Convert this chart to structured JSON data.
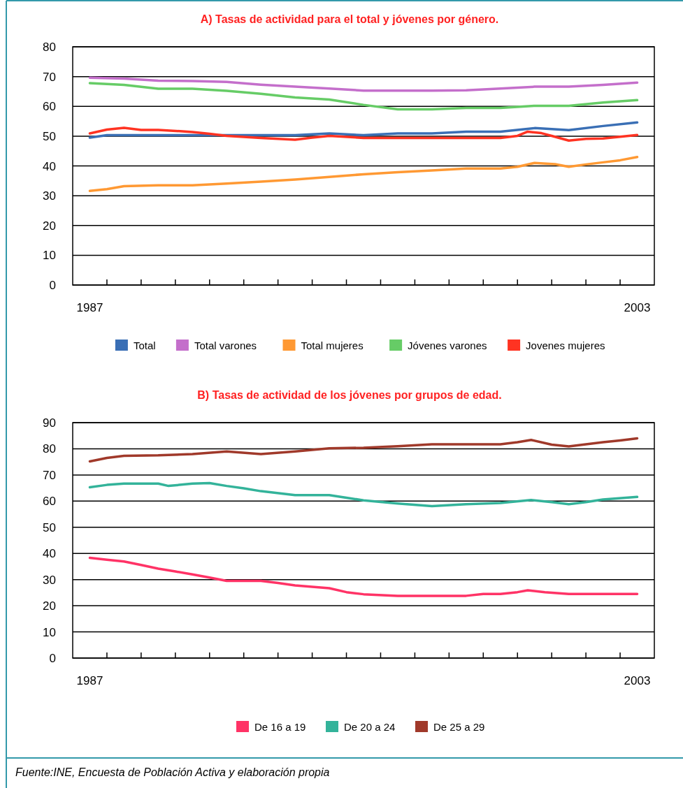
{
  "chart_data": [
    {
      "type": "line",
      "title": "A) Tasas de actividad para el total y jóvenes por género.",
      "xlim": [
        1986.5,
        2003.5
      ],
      "xticks": [
        {
          "value": 1987,
          "label": "1987"
        },
        {
          "value": 1987.5,
          "label": null
        },
        {
          "value": 1988.5,
          "label": null
        },
        {
          "value": 1989.5,
          "label": null
        },
        {
          "value": 1990.5,
          "label": null
        },
        {
          "value": 1991.5,
          "label": null
        },
        {
          "value": 1992.5,
          "label": null
        },
        {
          "value": 1993.5,
          "label": null
        },
        {
          "value": 1994.5,
          "label": null
        },
        {
          "value": 1995.5,
          "label": null
        },
        {
          "value": 1996.5,
          "label": null
        },
        {
          "value": 1997.5,
          "label": null
        },
        {
          "value": 1998.5,
          "label": null
        },
        {
          "value": 1999.5,
          "label": null
        },
        {
          "value": 2000.5,
          "label": null
        },
        {
          "value": 2001.5,
          "label": null
        },
        {
          "value": 2002.5,
          "label": null
        },
        {
          "value": 2003,
          "label": "2003"
        }
      ],
      "ylim": [
        0,
        80
      ],
      "yticks": [
        0,
        10,
        20,
        30,
        40,
        50,
        60,
        70,
        80
      ],
      "grid": "y",
      "legend": "bottom",
      "series": [
        {
          "name": "Total",
          "color": "#3a6fb5",
          "x": [
            1987,
            1987.5,
            1988,
            1989,
            1990,
            1991,
            1992,
            1993,
            1994,
            1995,
            1996,
            1997,
            1998,
            1999,
            2000,
            2001,
            2002,
            2003
          ],
          "values": [
            49.5,
            50.3,
            50.3,
            50.3,
            50.3,
            50.3,
            50.3,
            50.3,
            50.9,
            50.3,
            50.9,
            50.9,
            51.5,
            51.5,
            52.7,
            52,
            53.4,
            54.6
          ]
        },
        {
          "name": "Total varones",
          "color": "#c46fcb",
          "x": [
            1987,
            1988,
            1989,
            1990,
            1991,
            1992,
            1993,
            1994,
            1995,
            1996,
            1997,
            1998,
            1999,
            2000,
            2001,
            2002,
            2003
          ],
          "values": [
            69.6,
            69.3,
            68.6,
            68.5,
            68.2,
            67.3,
            66.6,
            66,
            65.3,
            65.3,
            65.3,
            65.4,
            66,
            66.6,
            66.6,
            67.2,
            68
          ]
        },
        {
          "name": "Total mujeres",
          "color": "#ff9933",
          "x": [
            1987,
            1987.5,
            1988,
            1989,
            1990,
            1991,
            1992,
            1993,
            1994,
            1995,
            1996,
            1997,
            1998,
            1999,
            1999.5,
            2000,
            2000.6,
            2001,
            2001.5,
            2002,
            2002.5,
            2003
          ],
          "values": [
            31.6,
            32.2,
            33.2,
            33.5,
            33.5,
            34.1,
            34.7,
            35.4,
            36.3,
            37.2,
            37.9,
            38.5,
            39.1,
            39.1,
            39.7,
            41,
            40.6,
            39.7,
            40.5,
            41.2,
            41.9,
            43
          ]
        },
        {
          "name": "Jóvenes varones",
          "color": "#66cc66",
          "x": [
            1987,
            1988,
            1989,
            1990,
            1991,
            1992,
            1993,
            1994,
            1995,
            1996,
            1997,
            1998,
            1999,
            2000,
            2001,
            2002,
            2003
          ],
          "values": [
            67.8,
            67.2,
            65.9,
            65.9,
            65.2,
            64.2,
            63,
            62.3,
            60.5,
            59,
            59,
            59.5,
            59.5,
            60.2,
            60.2,
            61.3,
            62.1
          ]
        },
        {
          "name": "Jovenes mujeres",
          "color": "#ff3322",
          "x": [
            1987,
            1987.5,
            1988,
            1988.5,
            1989,
            1990,
            1990.5,
            1991,
            1992,
            1993,
            1993.5,
            1994,
            1995,
            1996,
            1997,
            1998,
            1999,
            1999.5,
            1999.8,
            2000.2,
            2000.5,
            2001,
            2001.5,
            2002,
            2002.5,
            2003
          ],
          "values": [
            50.9,
            52.2,
            52.8,
            52.1,
            52.1,
            51.4,
            50.8,
            50.1,
            49.4,
            48.8,
            49.5,
            50.1,
            49.4,
            49.4,
            49.4,
            49.4,
            49.4,
            50.1,
            51.5,
            51,
            50.1,
            48.5,
            49.1,
            49.2,
            49.8,
            50.4
          ]
        }
      ]
    },
    {
      "type": "line",
      "title": "B) Tasas de actividad de los jóvenes por grupos de edad.",
      "xlim": [
        1986.5,
        2003.5
      ],
      "xticks": [
        {
          "value": 1987,
          "label": "1987"
        },
        {
          "value": 1987.5,
          "label": null
        },
        {
          "value": 1988.5,
          "label": null
        },
        {
          "value": 1989.5,
          "label": null
        },
        {
          "value": 1990.5,
          "label": null
        },
        {
          "value": 1991.5,
          "label": null
        },
        {
          "value": 1992.5,
          "label": null
        },
        {
          "value": 1993.5,
          "label": null
        },
        {
          "value": 1994.5,
          "label": null
        },
        {
          "value": 1995.5,
          "label": null
        },
        {
          "value": 1996.5,
          "label": null
        },
        {
          "value": 1997.5,
          "label": null
        },
        {
          "value": 1998.5,
          "label": null
        },
        {
          "value": 1999.5,
          "label": null
        },
        {
          "value": 2000.5,
          "label": null
        },
        {
          "value": 2001.5,
          "label": null
        },
        {
          "value": 2002.5,
          "label": null
        },
        {
          "value": 2003,
          "label": "2003"
        }
      ],
      "ylim": [
        0,
        90
      ],
      "yticks": [
        0,
        10,
        20,
        30,
        40,
        50,
        60,
        70,
        80,
        90
      ],
      "grid": "y",
      "legend": "bottom",
      "annotations": [
        "Fuente:INE, Encuesta de Población Activa y elaboración propia"
      ],
      "series": [
        {
          "name": "De 16 a 19",
          "color": "#ff3366",
          "x": [
            1987,
            1987.5,
            1988,
            1988.5,
            1989,
            1989.5,
            1990,
            1990.5,
            1991,
            1992,
            1992.5,
            1993,
            1994,
            1994.5,
            1995,
            1996,
            1997,
            1998,
            1998.5,
            1999,
            1999.5,
            1999.8,
            2000.3,
            2001,
            2002,
            2003
          ],
          "values": [
            38.3,
            37.6,
            36.9,
            35.6,
            34.2,
            33.1,
            32,
            30.8,
            29.5,
            29.5,
            28.7,
            27.8,
            26.7,
            25.2,
            24.4,
            23.8,
            23.8,
            23.8,
            24.5,
            24.5,
            25.2,
            25.9,
            25.2,
            24.5,
            24.5,
            24.5
          ]
        },
        {
          "name": "De 20 a 24",
          "color": "#33b39a",
          "x": [
            1987,
            1987.5,
            1988,
            1989,
            1989.3,
            1990,
            1990.5,
            1991,
            1991.5,
            1992,
            1993,
            1994,
            1994.5,
            1995,
            1996,
            1997,
            1998,
            1999,
            1999.9,
            2000.5,
            2001,
            2001.5,
            2002,
            2003
          ],
          "values": [
            65.3,
            66.2,
            66.7,
            66.7,
            65.8,
            66.7,
            66.9,
            65.8,
            64.9,
            63.8,
            62.3,
            62.3,
            61.3,
            60.3,
            59.1,
            58.1,
            58.8,
            59.3,
            60.4,
            59.6,
            58.8,
            59.6,
            60.6,
            61.6
          ]
        },
        {
          "name": "De 25 a 29",
          "color": "#a0392a",
          "x": [
            1987,
            1987.5,
            1988,
            1989,
            1990,
            1991,
            1992,
            1993,
            1994,
            1995,
            1996,
            1997,
            1998,
            1999,
            1999.5,
            1999.9,
            2000.5,
            2001,
            2001.5,
            2002,
            2002.5,
            2003
          ],
          "values": [
            75.2,
            76.5,
            77.3,
            77.5,
            78,
            79,
            78,
            79,
            80.2,
            80.4,
            81,
            81.7,
            81.7,
            81.7,
            82.5,
            83.4,
            81.6,
            80.9,
            81.7,
            82.5,
            83.2,
            84
          ]
        }
      ]
    }
  ]
}
